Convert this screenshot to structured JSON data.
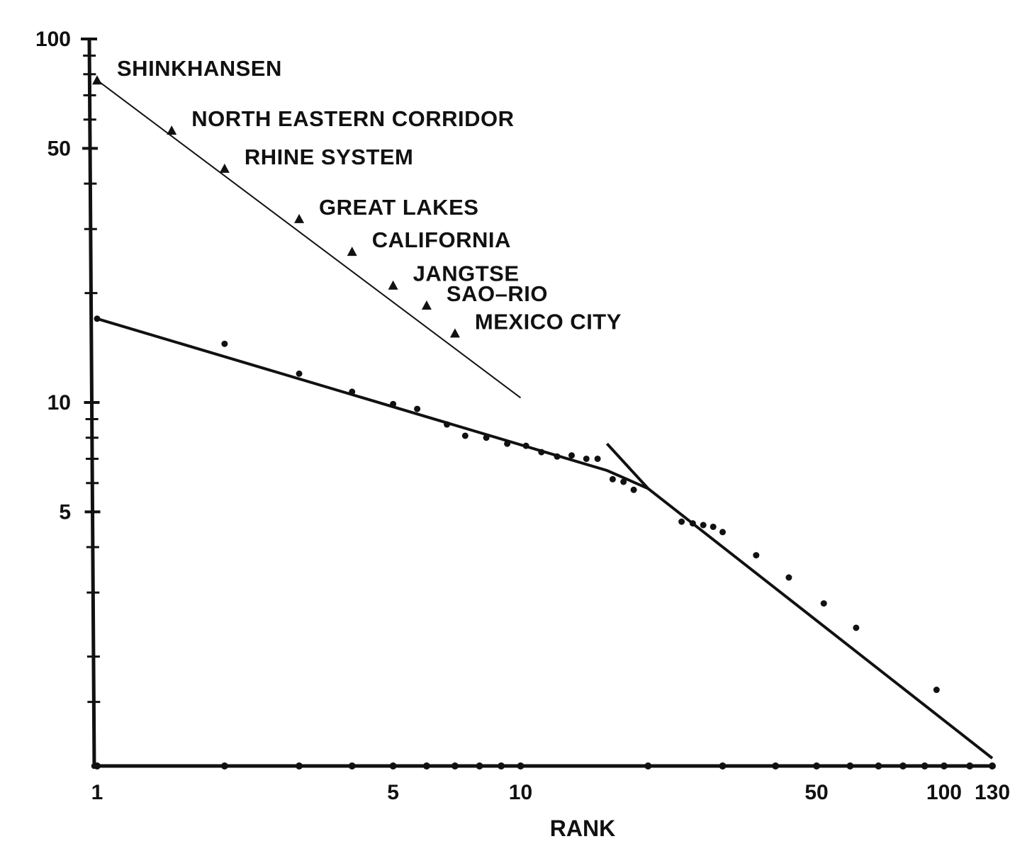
{
  "chart_data": {
    "type": "scatter",
    "title": "",
    "xlabel": "RANK",
    "ylabel": "",
    "x_scale": "log",
    "y_scale": "log",
    "xlim": [
      1,
      130
    ],
    "ylim": [
      1,
      100
    ],
    "x_ticks": [
      1,
      5,
      10,
      50,
      100,
      130
    ],
    "x_tick_labels": [
      "1",
      "5",
      "10",
      "50",
      "100",
      "130"
    ],
    "y_ticks": [
      5,
      10,
      50,
      100
    ],
    "y_tick_labels": [
      "5",
      "10",
      "50",
      "100"
    ],
    "grid": false,
    "series": [
      {
        "marker": "triangle",
        "points": [
          {
            "x": 1,
            "y": 77,
            "label": "SHINKHANSEN"
          },
          {
            "x": 1.5,
            "y": 56,
            "label": "NORTH EASTERN CORRIDOR"
          },
          {
            "x": 2,
            "y": 44,
            "label": "RHINE SYSTEM"
          },
          {
            "x": 3,
            "y": 32,
            "label": "GREAT LAKES"
          },
          {
            "x": 4,
            "y": 26,
            "label": "CALIFORNIA"
          },
          {
            "x": 5,
            "y": 21,
            "label": "JANGTSE"
          },
          {
            "x": 6,
            "y": 18.5,
            "label": "SAO–RIO"
          },
          {
            "x": 7,
            "y": 15.5,
            "label": "MEXICO CITY"
          }
        ],
        "fit_line": [
          [
            1,
            77
          ],
          [
            10,
            10.3
          ]
        ]
      },
      {
        "marker": "dot",
        "points": [
          {
            "x": 1,
            "y": 17
          },
          {
            "x": 2,
            "y": 14.5
          },
          {
            "x": 3,
            "y": 12
          },
          {
            "x": 4,
            "y": 10.7
          },
          {
            "x": 5,
            "y": 9.9
          },
          {
            "x": 5.7,
            "y": 9.6
          },
          {
            "x": 6.7,
            "y": 8.7
          },
          {
            "x": 7.4,
            "y": 8.1
          },
          {
            "x": 8.3,
            "y": 8.0
          },
          {
            "x": 9.3,
            "y": 7.7
          },
          {
            "x": 10.3,
            "y": 7.6
          },
          {
            "x": 11.2,
            "y": 7.3
          },
          {
            "x": 12.2,
            "y": 7.1
          },
          {
            "x": 13.2,
            "y": 7.15
          },
          {
            "x": 14.3,
            "y": 7.0
          },
          {
            "x": 15.2,
            "y": 7.0
          },
          {
            "x": 16.5,
            "y": 6.15
          },
          {
            "x": 17.5,
            "y": 6.05
          },
          {
            "x": 18.5,
            "y": 5.75
          }
        ],
        "fit_line": [
          [
            1,
            17
          ],
          [
            16,
            6.5
          ],
          [
            20,
            5.8
          ]
        ]
      },
      {
        "marker": "dot",
        "points": [
          {
            "x": 24,
            "y": 4.7
          },
          {
            "x": 25.5,
            "y": 4.65
          },
          {
            "x": 27,
            "y": 4.6
          },
          {
            "x": 28.5,
            "y": 4.55
          },
          {
            "x": 30,
            "y": 4.4
          },
          {
            "x": 36,
            "y": 3.8
          },
          {
            "x": 43,
            "y": 3.3
          },
          {
            "x": 52,
            "y": 2.8
          },
          {
            "x": 62,
            "y": 2.4
          },
          {
            "x": 96,
            "y": 1.62
          }
        ],
        "fit_line": [
          [
            16,
            7.7
          ],
          [
            20,
            5.8
          ],
          [
            130,
            1.05
          ]
        ]
      }
    ]
  }
}
